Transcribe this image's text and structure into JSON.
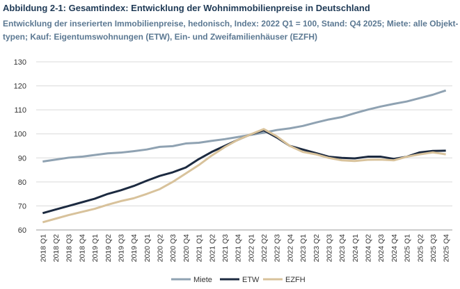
{
  "chart_data": {
    "type": "line",
    "title": "Abbildung 2-1: Gesamtindex: Entwicklung der Wohnimmobilienpreise in Deutschland",
    "subtitle": [
      "Entwicklung der inserierten Immobilienpreise, hedonisch, Index: 2022 Q1 = 100, Stand: Q4 2025; Miete: alle Objekt-",
      "typen; Kauf: Eigentumswohnungen (ETW), Ein- und Zweifamilienhäuser (EZFH)"
    ],
    "categories": [
      "2018 Q1",
      "2018 Q2",
      "2018 Q3",
      "2018 Q4",
      "2019 Q1",
      "2019 Q2",
      "2019 Q3",
      "2019 Q4",
      "2020 Q1",
      "2020 Q2",
      "2020 Q3",
      "2020 Q4",
      "2021 Q1",
      "2021 Q2",
      "2021 Q3",
      "2021 Q4",
      "2022 Q1",
      "2022 Q2",
      "2022 Q3",
      "2022 Q4",
      "2023 Q1",
      "2023 Q2",
      "2023 Q3",
      "2023 Q4",
      "2024 Q1",
      "2024 Q2",
      "2024 Q3",
      "2024 Q4",
      "2025 Q1",
      "2025 Q2",
      "2025 Q3",
      "2025 Q4"
    ],
    "series": [
      {
        "name": "Miete",
        "color": "#8fa2b2",
        "values": [
          88.5,
          89.3,
          90.1,
          90.5,
          91.2,
          91.9,
          92.2,
          92.8,
          93.5,
          94.6,
          94.9,
          96.0,
          96.3,
          97.1,
          97.8,
          98.7,
          99.6,
          100.5,
          101.6,
          102.3,
          103.3,
          104.7,
          106.0,
          107.0,
          108.6,
          110.1,
          111.4,
          112.5,
          113.5,
          114.9,
          116.3,
          118.1
        ]
      },
      {
        "name": "ETW",
        "color": "#1c2a40",
        "values": [
          67,
          68.5,
          70,
          71.5,
          73,
          75,
          76.5,
          78.3,
          80.5,
          82.5,
          84,
          86,
          89.5,
          92.5,
          95,
          97.5,
          99.8,
          101.5,
          98.5,
          95,
          93.5,
          92,
          90.5,
          90,
          89.8,
          90.5,
          90.5,
          89.6,
          90.5,
          92.3,
          92.9,
          93.0
        ]
      },
      {
        "name": "EZFH",
        "color": "#d8c29b",
        "values": [
          63.2,
          64.7,
          66.2,
          67.5,
          68.8,
          70.5,
          72,
          73.2,
          75,
          77,
          80,
          83.5,
          87,
          91,
          94.5,
          97.5,
          99.8,
          102,
          99,
          95,
          92.5,
          91.5,
          90,
          89,
          88.7,
          89.2,
          89.3,
          89,
          90.5,
          91.5,
          92.3,
          91.5
        ]
      }
    ],
    "ylim": [
      60,
      130
    ],
    "yticks": [
      60,
      70,
      80,
      90,
      100,
      110,
      120,
      130
    ],
    "grid": true,
    "legend": "bottom"
  }
}
